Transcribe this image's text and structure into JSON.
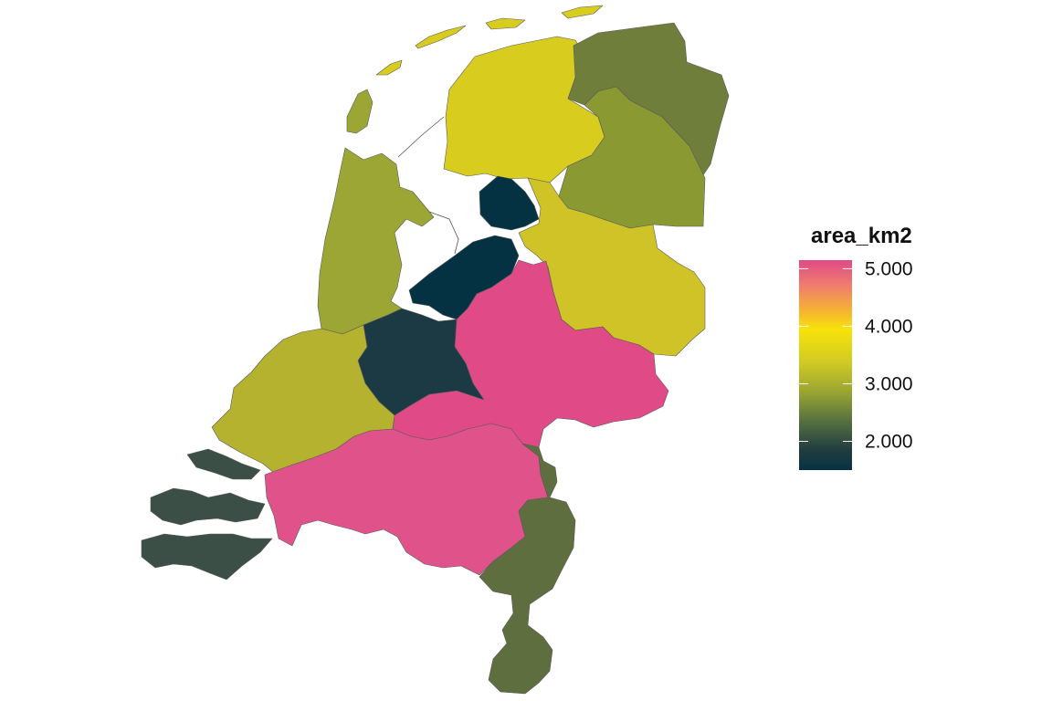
{
  "map": {
    "fill_variable": "area_km2",
    "provinces": [
      {
        "id": "groningen",
        "color": "#6f7e3a"
      },
      {
        "id": "friesland",
        "color": "#d8cc1f"
      },
      {
        "id": "drenthe",
        "color": "#8b9933"
      },
      {
        "id": "overijssel",
        "color": "#cfc327"
      },
      {
        "id": "flevoland",
        "color": "#043243"
      },
      {
        "id": "gelderland",
        "color": "#e04a86"
      },
      {
        "id": "utrecht",
        "color": "#1c3a44"
      },
      {
        "id": "noord-holland",
        "color": "#9ca634"
      },
      {
        "id": "zuid-holland",
        "color": "#b4b22e"
      },
      {
        "id": "zeeland",
        "color": "#3b4f47"
      },
      {
        "id": "noord-brabant",
        "color": "#e0538a"
      },
      {
        "id": "limburg",
        "color": "#5e6e3e"
      }
    ]
  },
  "legend": {
    "title": "area_km2",
    "ticks": [
      {
        "label": "5.000",
        "value": 5000
      },
      {
        "label": "4.000",
        "value": 4000
      },
      {
        "label": "3.000",
        "value": 3000
      },
      {
        "label": "2.000",
        "value": 2000
      }
    ],
    "range": [
      1500,
      5150
    ],
    "gradient": [
      {
        "offset": 0.0,
        "color": "#e04a86"
      },
      {
        "offset": 0.12,
        "color": "#ef7d6e"
      },
      {
        "offset": 0.24,
        "color": "#f6b233"
      },
      {
        "offset": 0.33,
        "color": "#f7e30a"
      },
      {
        "offset": 0.48,
        "color": "#d3cc22"
      },
      {
        "offset": 0.62,
        "color": "#9da832"
      },
      {
        "offset": 0.77,
        "color": "#54703f"
      },
      {
        "offset": 0.9,
        "color": "#233e40"
      },
      {
        "offset": 1.0,
        "color": "#043243"
      }
    ]
  }
}
